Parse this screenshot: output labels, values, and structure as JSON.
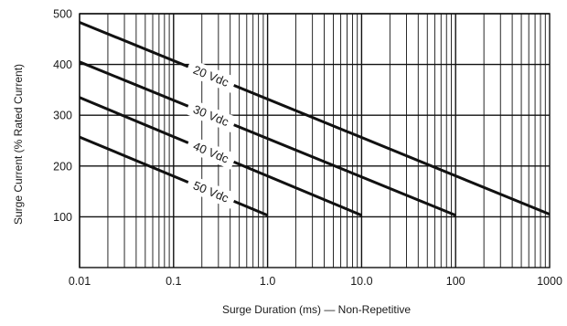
{
  "chart_data": {
    "type": "line",
    "title": "",
    "xlabel": "Surge Duration (ms) — Non-Repetitive",
    "ylabel": "Surge Current (% Rated Current)",
    "x_scale": "log",
    "xlim": [
      0.01,
      1000
    ],
    "ylim": [
      0,
      500
    ],
    "grid": true,
    "x_ticks": [
      {
        "value": 0.01,
        "label": "0.01"
      },
      {
        "value": 0.1,
        "label": "0.1"
      },
      {
        "value": 1,
        "label": "1.0"
      },
      {
        "value": 10,
        "label": "10.0"
      },
      {
        "value": 100,
        "label": "100"
      },
      {
        "value": 1000,
        "label": "1000"
      }
    ],
    "y_ticks": [
      {
        "value": 100,
        "label": "100"
      },
      {
        "value": 200,
        "label": "200"
      },
      {
        "value": 300,
        "label": "300"
      },
      {
        "value": 400,
        "label": "400"
      },
      {
        "value": 500,
        "label": "500"
      }
    ],
    "series": [
      {
        "name": "20 Vdc",
        "label": "20 Vdc",
        "x": [
          0.01,
          1000
        ],
        "y": [
          483,
          105
        ],
        "label_x": 0.25
      },
      {
        "name": "30 Vdc",
        "label": "30 Vdc",
        "x": [
          0.01,
          100
        ],
        "y": [
          405,
          103
        ],
        "label_x": 0.25
      },
      {
        "name": "40 Vdc",
        "label": "40 Vdc",
        "x": [
          0.01,
          10
        ],
        "y": [
          335,
          103
        ],
        "label_x": 0.25
      },
      {
        "name": "50 Vdc",
        "label": "50 Vdc",
        "x": [
          0.01,
          1
        ],
        "y": [
          257,
          103
        ],
        "label_x": 0.25
      }
    ]
  }
}
